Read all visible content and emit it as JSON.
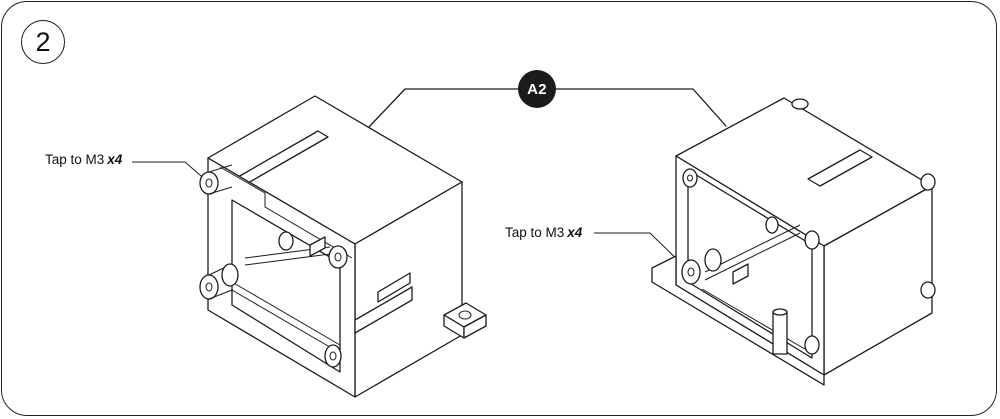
{
  "step": {
    "number": "2"
  },
  "part": {
    "label": "A2"
  },
  "callouts": [
    {
      "text": "Tap to M3",
      "qty": "x4"
    },
    {
      "text": "Tap to M3",
      "qty": "x4"
    }
  ],
  "colors": {
    "stroke": "#1c1c1c",
    "badge_fill": "#1b1b1b",
    "background": "#ffffff"
  }
}
